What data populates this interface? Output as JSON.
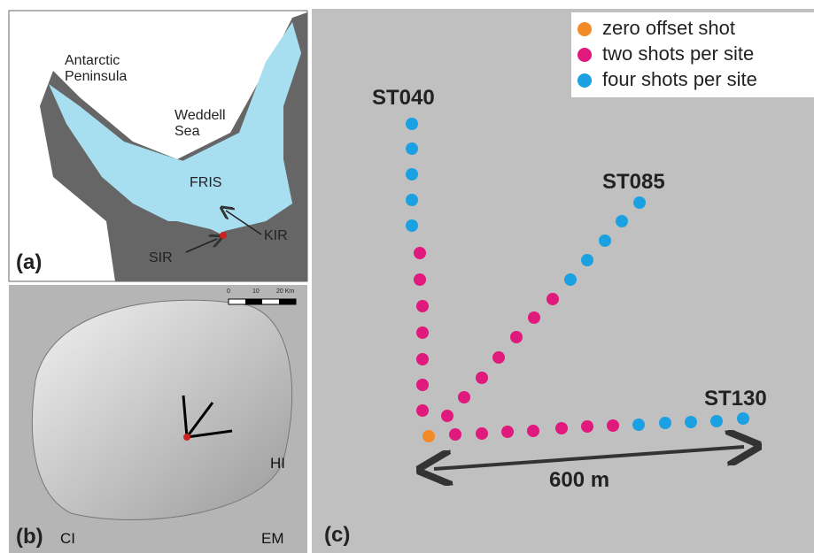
{
  "panel_a": {
    "label": "(a)",
    "places": {
      "peninsula": "Antarctic Peninsula",
      "sea": "Weddell Sea",
      "fris": "FRIS",
      "kir": "KIR",
      "sir": "SIR"
    }
  },
  "panel_b": {
    "label": "(b)",
    "places": {
      "ci": "CI",
      "hi": "HI",
      "em": "EM"
    },
    "scale": {
      "ticks": [
        "0",
        "10",
        "20 Km"
      ]
    }
  },
  "panel_c": {
    "label": "(c)",
    "sites": [
      "ST040",
      "ST085",
      "ST130"
    ],
    "distance": "600 m",
    "legend": [
      {
        "label": "zero offset shot",
        "color": "#f28a25"
      },
      {
        "label": "two shots per site",
        "color": "#e0197d"
      },
      {
        "label": "four shots per site",
        "color": "#1ba1e2"
      }
    ]
  }
}
